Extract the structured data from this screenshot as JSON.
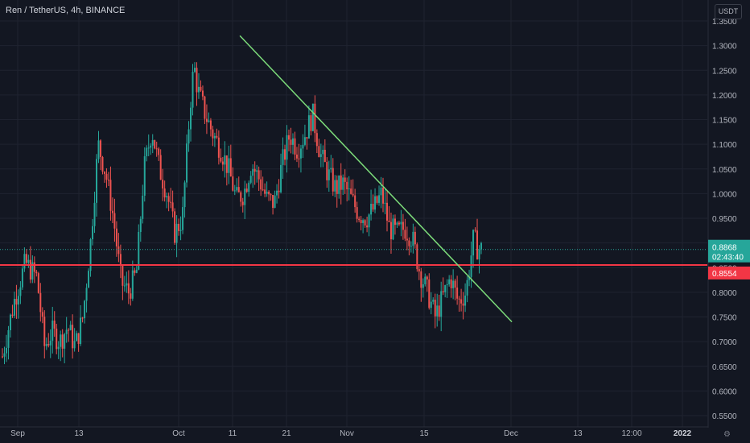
{
  "header": {
    "symbol_title": "Ren / TetherUS, 4h, BINANCE"
  },
  "price_scale": {
    "currency": "USDT"
  },
  "chart_data": {
    "type": "candlestick",
    "title": "Ren / TetherUS, 4h, BINANCE",
    "y_unit": "USDT",
    "ylim": [
      0.53,
      1.37
    ],
    "y_ticks": [
      "0.5500",
      "0.6000",
      "0.6500",
      "0.7000",
      "0.7500",
      "0.8000",
      "0.8500",
      "0.9000",
      "0.9500",
      "1.0000",
      "1.0500",
      "1.1000",
      "1.1500",
      "1.2000",
      "1.2500",
      "1.3000",
      "1.3500"
    ],
    "x_ticks": [
      {
        "label": "Sep",
        "bold": false
      },
      {
        "label": "13",
        "bold": false
      },
      {
        "label": "Oct",
        "bold": false
      },
      {
        "label": "11",
        "bold": false
      },
      {
        "label": "21",
        "bold": false
      },
      {
        "label": "Nov",
        "bold": false
      },
      {
        "label": "15",
        "bold": false
      },
      {
        "label": "Dec",
        "bold": false
      },
      {
        "label": "13",
        "bold": false
      },
      {
        "label": "12:00",
        "bold": false
      },
      {
        "label": "2022",
        "bold": true
      }
    ],
    "price_path": [
      {
        "t": 0.0,
        "p": 0.67
      },
      {
        "t": 1.5,
        "p": 0.78
      },
      {
        "t": 3.0,
        "p": 0.86
      },
      {
        "t": 4.5,
        "p": 0.83
      },
      {
        "t": 5.5,
        "p": 0.69
      },
      {
        "t": 6.5,
        "p": 0.72
      },
      {
        "t": 7.5,
        "p": 0.7
      },
      {
        "t": 8.5,
        "p": 0.73
      },
      {
        "t": 9.5,
        "p": 0.69
      },
      {
        "t": 10.5,
        "p": 0.75
      },
      {
        "t": 11.5,
        "p": 0.9
      },
      {
        "t": 12.5,
        "p": 1.1
      },
      {
        "t": 13.5,
        "p": 1.04
      },
      {
        "t": 14.5,
        "p": 0.95
      },
      {
        "t": 15.5,
        "p": 0.82
      },
      {
        "t": 16.5,
        "p": 0.8
      },
      {
        "t": 17.5,
        "p": 0.84
      },
      {
        "t": 18.5,
        "p": 1.05
      },
      {
        "t": 19.5,
        "p": 1.13
      },
      {
        "t": 20.5,
        "p": 1.05
      },
      {
        "t": 21.5,
        "p": 1.0
      },
      {
        "t": 22.5,
        "p": 0.92
      },
      {
        "t": 23.5,
        "p": 0.95
      },
      {
        "t": 24.5,
        "p": 1.18
      },
      {
        "t": 25.0,
        "p": 1.26
      },
      {
        "t": 25.5,
        "p": 1.21
      },
      {
        "t": 26.5,
        "p": 1.16
      },
      {
        "t": 27.5,
        "p": 1.12
      },
      {
        "t": 28.5,
        "p": 1.09
      },
      {
        "t": 29.5,
        "p": 1.05
      },
      {
        "t": 30.5,
        "p": 0.99
      },
      {
        "t": 31.5,
        "p": 1.0
      },
      {
        "t": 32.5,
        "p": 1.06
      },
      {
        "t": 33.5,
        "p": 1.03
      },
      {
        "t": 34.5,
        "p": 0.99
      },
      {
        "t": 35.5,
        "p": 0.98
      },
      {
        "t": 36.5,
        "p": 1.06
      },
      {
        "t": 37.5,
        "p": 1.12
      },
      {
        "t": 38.5,
        "p": 1.09
      },
      {
        "t": 39.5,
        "p": 1.12
      },
      {
        "t": 40.5,
        "p": 1.16
      },
      {
        "t": 41.5,
        "p": 1.08
      },
      {
        "t": 42.5,
        "p": 1.04
      },
      {
        "t": 43.5,
        "p": 1.01
      },
      {
        "t": 44.5,
        "p": 1.02
      },
      {
        "t": 45.5,
        "p": 0.99
      },
      {
        "t": 46.5,
        "p": 0.96
      },
      {
        "t": 47.5,
        "p": 0.95
      },
      {
        "t": 48.5,
        "p": 0.97
      },
      {
        "t": 49.5,
        "p": 1.0
      },
      {
        "t": 50.5,
        "p": 0.93
      },
      {
        "t": 51.5,
        "p": 0.92
      },
      {
        "t": 52.5,
        "p": 0.93
      },
      {
        "t": 53.5,
        "p": 0.91
      },
      {
        "t": 54.5,
        "p": 0.84
      },
      {
        "t": 55.5,
        "p": 0.8
      },
      {
        "t": 56.5,
        "p": 0.75
      },
      {
        "t": 57.5,
        "p": 0.79
      },
      {
        "t": 58.5,
        "p": 0.83
      },
      {
        "t": 59.5,
        "p": 0.78
      },
      {
        "t": 60.5,
        "p": 0.8
      },
      {
        "t": 61.5,
        "p": 0.91
      },
      {
        "t": 62.0,
        "p": 0.89
      },
      {
        "t": 62.5,
        "p": 0.8868
      }
    ],
    "total_periods": 63,
    "last_price": 0.8868,
    "last_price_label": "0.8868",
    "countdown_label": "02:43:40",
    "horizontal_line": {
      "price": 0.8554,
      "label": "0.8554",
      "color": "#f23645"
    },
    "trend_line": {
      "color": "#7cdb7a",
      "from": {
        "t": 31,
        "p": 1.32
      },
      "to": {
        "t": 66.5,
        "p": 0.74
      }
    },
    "colors": {
      "up": "#26a69a",
      "down": "#ef5350",
      "background": "#131722",
      "grid": "#1f2330"
    },
    "grid": true
  }
}
